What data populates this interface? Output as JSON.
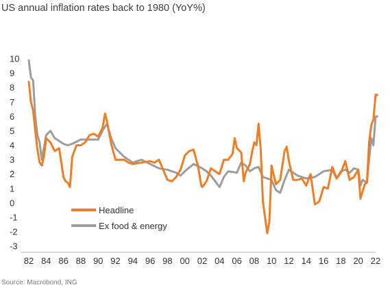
{
  "title": "US annual inflation rates back to 1980 (YoY%)",
  "source": "Source: Macrobond, ING",
  "chart_data": {
    "type": "line",
    "title": "US annual inflation rates back to 1980 (YoY%)",
    "xlabel": "",
    "ylabel": "",
    "xlim": [
      1982,
      2022.5
    ],
    "ylim": [
      -3,
      10
    ],
    "x_ticks": [
      "82",
      "84",
      "86",
      "88",
      "90",
      "92",
      "94",
      "96",
      "98",
      "00",
      "02",
      "04",
      "06",
      "08",
      "10",
      "12",
      "14",
      "16",
      "18",
      "20",
      "22"
    ],
    "y_ticks": [
      "10",
      "9",
      "8",
      "7",
      "6",
      "5",
      "4",
      "3",
      "2",
      "1",
      "0",
      "-1",
      "-2",
      "-3"
    ],
    "grid": false,
    "legend_position": "bottom-left",
    "series": [
      {
        "name": "Headline",
        "color": "#f07c23",
        "x": [
          1982.0,
          1982.25,
          1982.5,
          1982.75,
          1983.0,
          1983.25,
          1983.5,
          1983.75,
          1984.0,
          1984.5,
          1985.0,
          1985.5,
          1986.0,
          1986.25,
          1986.5,
          1986.75,
          1987.0,
          1987.5,
          1988.0,
          1988.5,
          1989.0,
          1989.5,
          1990.0,
          1990.5,
          1990.8,
          1991.0,
          1991.5,
          1992.0,
          1992.5,
          1993.0,
          1993.5,
          1994.0,
          1995.0,
          1996.0,
          1996.5,
          1997.0,
          1997.5,
          1998.0,
          1998.5,
          1999.0,
          1999.5,
          2000.0,
          2000.5,
          2001.0,
          2001.5,
          2001.9,
          2002.0,
          2002.5,
          2003.0,
          2003.5,
          2004.0,
          2004.5,
          2005.0,
          2005.5,
          2005.75,
          2006.0,
          2006.5,
          2006.8,
          2007.0,
          2007.5,
          2007.75,
          2008.0,
          2008.25,
          2008.5,
          2008.75,
          2009.0,
          2009.25,
          2009.5,
          2009.75,
          2010.0,
          2010.5,
          2011.0,
          2011.5,
          2011.75,
          2012.0,
          2012.5,
          2013.0,
          2013.5,
          2014.0,
          2014.5,
          2015.0,
          2015.5,
          2016.0,
          2016.5,
          2017.0,
          2017.5,
          2018.0,
          2018.5,
          2019.0,
          2019.5,
          2020.0,
          2020.25,
          2020.5,
          2020.75,
          2021.0,
          2021.25,
          2021.5,
          2021.75,
          2022.0,
          2022.2
        ],
        "values": [
          8.4,
          7.0,
          6.4,
          5.0,
          3.7,
          2.8,
          2.6,
          3.2,
          4.5,
          4.2,
          3.6,
          3.8,
          1.8,
          1.5,
          1.4,
          1.1,
          3.2,
          4.0,
          4.0,
          4.2,
          4.7,
          4.8,
          4.6,
          5.2,
          6.2,
          5.7,
          4.1,
          3.0,
          3.0,
          3.0,
          2.8,
          2.7,
          2.8,
          2.9,
          2.8,
          3.0,
          2.3,
          1.6,
          1.5,
          1.8,
          2.3,
          3.3,
          3.6,
          3.7,
          2.6,
          1.2,
          1.1,
          1.5,
          2.4,
          2.2,
          2.0,
          3.0,
          3.0,
          3.4,
          4.5,
          3.8,
          3.5,
          1.5,
          2.1,
          2.7,
          3.5,
          4.2,
          4.0,
          5.5,
          3.7,
          0.1,
          -1.0,
          -2.1,
          -1.3,
          2.6,
          1.3,
          1.6,
          3.6,
          3.9,
          2.9,
          1.6,
          1.6,
          1.7,
          1.2,
          2.0,
          -0.1,
          0.1,
          1.1,
          1.0,
          2.5,
          1.7,
          2.1,
          2.9,
          1.6,
          1.8,
          2.3,
          0.3,
          0.8,
          1.3,
          1.4,
          4.2,
          5.4,
          5.8,
          7.5,
          7.5
        ]
      },
      {
        "name": "Ex food & energy",
        "color": "#9c9c9c",
        "x": [
          1982.0,
          1982.25,
          1982.5,
          1982.75,
          1983.0,
          1983.25,
          1983.5,
          1984.0,
          1984.5,
          1985.0,
          1986.0,
          1986.5,
          1987.0,
          1988.0,
          1989.0,
          1990.0,
          1990.5,
          1991.0,
          1991.5,
          1992.0,
          1993.0,
          1994.0,
          1995.0,
          1996.0,
          1997.0,
          1998.0,
          1999.0,
          1999.5,
          2000.0,
          2001.0,
          2002.0,
          2002.5,
          2003.0,
          2003.5,
          2004.0,
          2004.5,
          2005.0,
          2006.0,
          2006.5,
          2007.0,
          2007.5,
          2008.0,
          2008.5,
          2009.0,
          2009.5,
          2010.0,
          2010.5,
          2011.0,
          2011.5,
          2012.0,
          2012.5,
          2013.0,
          2014.0,
          2015.0,
          2016.0,
          2017.0,
          2017.5,
          2018.0,
          2018.5,
          2019.0,
          2019.5,
          2020.0,
          2020.25,
          2020.5,
          2021.0,
          2021.25,
          2021.5,
          2021.75,
          2022.0,
          2022.2
        ],
        "values": [
          9.9,
          8.7,
          8.5,
          6.0,
          4.7,
          4.2,
          3.0,
          4.7,
          5.0,
          4.5,
          4.1,
          4.0,
          4.1,
          4.4,
          4.4,
          4.4,
          5.0,
          5.5,
          4.5,
          3.8,
          3.2,
          2.8,
          3.0,
          2.7,
          2.4,
          2.3,
          2.1,
          1.9,
          2.2,
          2.7,
          2.4,
          2.2,
          1.9,
          1.5,
          1.1,
          1.8,
          2.2,
          2.1,
          2.8,
          2.6,
          2.2,
          2.4,
          2.5,
          1.8,
          1.7,
          1.6,
          0.9,
          0.7,
          1.6,
          2.3,
          2.1,
          1.9,
          1.7,
          1.8,
          2.2,
          2.3,
          1.7,
          2.2,
          2.3,
          2.1,
          2.4,
          2.3,
          1.2,
          1.6,
          1.4,
          3.0,
          4.5,
          4.0,
          6.0,
          6.0
        ]
      }
    ]
  }
}
